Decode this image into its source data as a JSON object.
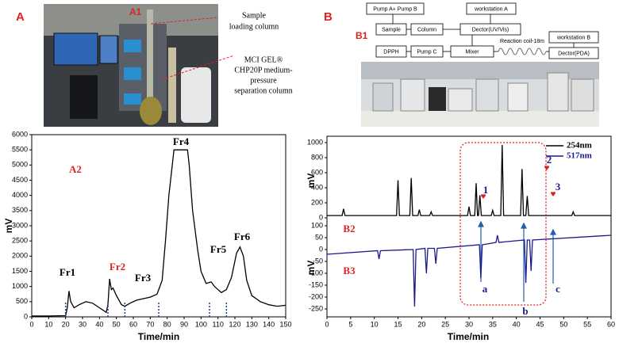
{
  "panel_labels": {
    "a": "A",
    "a1": "A1",
    "b": "B",
    "b1": "B1"
  },
  "photo_a_labels": {
    "sample_column": [
      "Sample",
      "loading column"
    ],
    "separation_column": [
      "MCI GEL®",
      "CHP20P medium-",
      "pressure",
      "separation column"
    ]
  },
  "flow_b1": {
    "nodes": [
      "Pump A+ Pump B",
      "workstation A",
      "Sample",
      "Column",
      "Dector(UV/Vis)",
      "DPPH",
      "Pump C",
      "Mixer",
      "Reaction coil-18m",
      "workstation B",
      "Dector(PDA)"
    ]
  },
  "chart_data": [
    {
      "type": "line",
      "xlabel": "Time/min",
      "ylabel": "mV",
      "color": "#000000",
      "annotations": [
        "A2",
        "Fr1",
        "Fr2",
        "Fr3",
        "Fr4",
        "Fr5",
        "Fr6"
      ],
      "x": [
        0,
        10,
        20,
        21,
        22,
        23,
        25,
        28,
        32,
        36,
        40,
        44,
        45,
        46,
        47,
        48,
        50,
        53,
        55,
        58,
        62,
        66,
        70,
        74,
        77,
        79,
        81,
        83,
        84,
        92,
        93,
        95,
        98,
        100,
        103,
        106,
        108,
        112,
        115,
        118,
        121,
        123,
        125,
        127,
        130,
        135,
        140,
        145,
        150
      ],
      "values": [
        30,
        30,
        40,
        300,
        850,
        500,
        300,
        400,
        500,
        450,
        300,
        150,
        400,
        1250,
        900,
        950,
        700,
        400,
        350,
        450,
        550,
        600,
        650,
        750,
        1200,
        2500,
        4000,
        5000,
        5500,
        5500,
        5000,
        3500,
        2200,
        1500,
        1100,
        1150,
        1000,
        800,
        900,
        1300,
        2100,
        2300,
        2000,
        1200,
        700,
        500,
        400,
        350,
        380
      ],
      "markers": [
        20,
        45,
        55,
        75,
        105,
        115
      ],
      "marker_color": "#1f3a9e",
      "xlim": [
        0,
        150
      ],
      "xticks": [
        0,
        10,
        20,
        30,
        40,
        50,
        60,
        70,
        80,
        90,
        100,
        110,
        120,
        130,
        140,
        150
      ],
      "ylim": [
        0,
        6000
      ],
      "yticks": [
        0,
        500,
        1000,
        1500,
        2000,
        2500,
        3000,
        3500,
        4000,
        4500,
        5000,
        5500,
        6000
      ]
    },
    {
      "type": "line",
      "xlabel": "Time/min",
      "ylabel": "mV",
      "y2label": "mV",
      "legend": "upper right",
      "annotations": [
        "B2",
        "B3",
        "1",
        "2",
        "3",
        "a",
        "b",
        "c"
      ],
      "xlim": [
        0,
        60
      ],
      "xticks": [
        0,
        5,
        10,
        15,
        20,
        25,
        30,
        35,
        40,
        45,
        50,
        55,
        60
      ],
      "ylim": [
        0,
        1000
      ],
      "yticks": [
        0,
        200,
        400,
        600,
        800,
        1000
      ],
      "y2lim": [
        -250,
        100
      ],
      "y2ticks": [
        -250,
        -200,
        -150,
        -100,
        -50,
        0,
        50,
        100
      ],
      "series": [
        {
          "name": "254nm",
          "color": "#000000",
          "x": [
            0,
            3.2,
            3.5,
            3.8,
            14.7,
            15,
            15.3,
            17.5,
            17.8,
            18.1,
            19.2,
            19.5,
            19.8,
            21.7,
            22,
            22.3,
            29.7,
            30,
            30.3,
            31.2,
            31.5,
            31.8,
            32,
            32.3,
            32.6,
            34.7,
            35,
            35.3,
            36.7,
            37,
            37.3,
            40.9,
            41.2,
            41.5,
            42,
            42.3,
            42.6,
            51.7,
            52,
            52.3,
            60
          ],
          "values": [
            30,
            30,
            120,
            30,
            30,
            500,
            30,
            30,
            530,
            30,
            30,
            110,
            30,
            30,
            80,
            30,
            30,
            150,
            30,
            30,
            460,
            30,
            30,
            300,
            30,
            30,
            100,
            30,
            30,
            970,
            30,
            30,
            650,
            30,
            30,
            290,
            30,
            30,
            80,
            30,
            30
          ]
        },
        {
          "name": "517nm",
          "color": "#1a1a8c",
          "axis": "y2",
          "x": [
            0,
            10.7,
            11,
            11.3,
            18.2,
            18.5,
            18.8,
            20.7,
            21,
            21.3,
            22.7,
            23,
            23.3,
            32.2,
            32.5,
            32.8,
            35.7,
            36,
            36.3,
            41.7,
            42,
            42.3,
            42.8,
            43.1,
            43.4,
            60
          ],
          "values": [
            -20,
            -5,
            -40,
            -5,
            0,
            -240,
            0,
            5,
            -100,
            5,
            5,
            -60,
            5,
            20,
            -120,
            20,
            30,
            60,
            30,
            40,
            -140,
            40,
            40,
            -90,
            40,
            60
          ]
        }
      ]
    }
  ]
}
